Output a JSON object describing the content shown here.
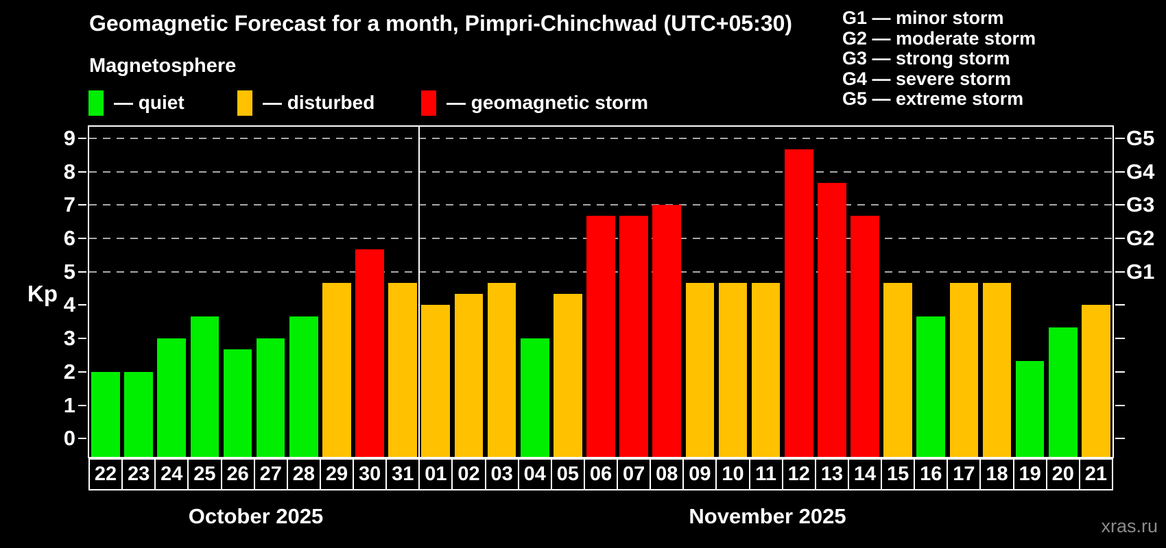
{
  "title": "Geomagnetic Forecast for a month, Pimpri-Chinchwad (UTC+05:30)",
  "subtitle": "Magnetosphere",
  "legend": {
    "quiet": "— quiet",
    "disturbed": "— disturbed",
    "storm": "— geomagnetic storm"
  },
  "g_scale": [
    "G1 — minor storm",
    "G2 — moderate storm",
    "G3 — strong storm",
    "G4 — severe storm",
    "G5 — extreme storm"
  ],
  "axis": {
    "y_label": "Kp",
    "y_ticks": [
      "0",
      "1",
      "2",
      "3",
      "4",
      "5",
      "6",
      "7",
      "8",
      "9"
    ],
    "right_labels": [
      "G1",
      "G2",
      "G3",
      "G4",
      "G5"
    ]
  },
  "months": [
    {
      "label": "October 2025",
      "days": 10
    },
    {
      "label": "November 2025",
      "days": 21
    }
  ],
  "watermark": "xras.ru",
  "colors": {
    "background": "#000000",
    "text": "#ffffff",
    "grid": "#a9a9a9",
    "quiet": "#00ef00",
    "disturbed": "#ffc100",
    "storm": "#ff0000",
    "watermark": "#8c8c8c"
  },
  "chart_data": {
    "type": "bar",
    "title": "Geomagnetic Forecast for a month, Pimpri-Chinchwad (UTC+05:30)",
    "xlabel": "",
    "ylabel": "Kp",
    "ylim": [
      -0.55,
      9.35
    ],
    "grid": "dashed horizontal at Kp 5-9 only",
    "gridlines_at": [
      5,
      6,
      7,
      8,
      9
    ],
    "right_axis_map": {
      "G1": 5,
      "G2": 6,
      "G3": 7,
      "G4": 8,
      "G5": 9
    },
    "categories": [
      "22",
      "23",
      "24",
      "25",
      "26",
      "27",
      "28",
      "29",
      "30",
      "31",
      "01",
      "02",
      "03",
      "04",
      "05",
      "06",
      "07",
      "08",
      "09",
      "10",
      "11",
      "12",
      "13",
      "14",
      "15",
      "16",
      "17",
      "18",
      "19",
      "20",
      "21"
    ],
    "values": [
      2.0,
      2.0,
      3.0,
      3.67,
      2.67,
      3.0,
      3.67,
      4.67,
      5.67,
      4.67,
      4.0,
      4.33,
      4.67,
      3.0,
      4.33,
      6.67,
      6.67,
      7.0,
      4.67,
      4.67,
      4.67,
      8.67,
      7.67,
      6.67,
      4.67,
      3.67,
      4.67,
      4.67,
      2.33,
      3.33,
      4.0
    ],
    "statuses": [
      "quiet",
      "quiet",
      "quiet",
      "quiet",
      "quiet",
      "quiet",
      "quiet",
      "disturbed",
      "storm",
      "disturbed",
      "disturbed",
      "disturbed",
      "disturbed",
      "quiet",
      "disturbed",
      "storm",
      "storm",
      "storm",
      "disturbed",
      "disturbed",
      "disturbed",
      "storm",
      "storm",
      "storm",
      "disturbed",
      "quiet",
      "disturbed",
      "disturbed",
      "quiet",
      "quiet",
      "disturbed"
    ]
  }
}
